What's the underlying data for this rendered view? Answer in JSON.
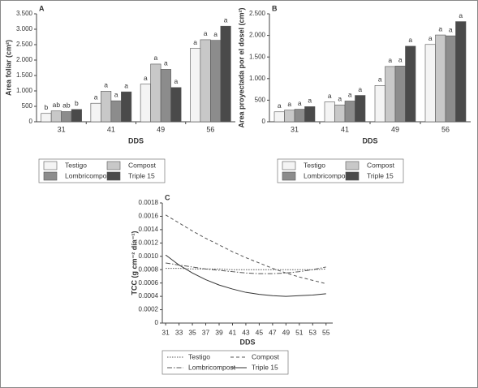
{
  "chart_data": [
    {
      "type": "bar",
      "panel": "A",
      "ylabel": "Area foliar (cm²)",
      "xlabel": "DDS",
      "categories": [
        "31",
        "41",
        "49",
        "56"
      ],
      "ylim": [
        0,
        3500
      ],
      "yticks": [
        0,
        500,
        {
          "value": 1000,
          "label": "1.000"
        },
        {
          "value": 1500,
          "label": "1.500"
        },
        {
          "value": 2000,
          "label": "2.000"
        },
        {
          "value": 2500,
          "label": "2.500"
        },
        {
          "value": 3000,
          "label": "3.000"
        },
        {
          "value": 3500,
          "label": "3.500"
        }
      ],
      "series": [
        {
          "name": "Testigo",
          "color": "#f4f4f4",
          "values": [
            270,
            600,
            1220,
            2380
          ],
          "letters": [
            "b",
            "a",
            "a",
            "a"
          ]
        },
        {
          "name": "Compost",
          "color": "#c8c8c8",
          "values": [
            350,
            990,
            1870,
            2660
          ],
          "letters": [
            "ab",
            "a",
            "a",
            "a"
          ]
        },
        {
          "name": "Lombricompost",
          "color": "#8c8c8c",
          "values": [
            330,
            680,
            1700,
            2640
          ],
          "letters": [
            "ab",
            "a",
            "a",
            "a"
          ]
        },
        {
          "name": "Triple 15",
          "color": "#4a4a4a",
          "values": [
            400,
            970,
            1110,
            3100
          ],
          "letters": [
            "b",
            "a",
            "a",
            "a"
          ]
        }
      ]
    },
    {
      "type": "bar",
      "panel": "B",
      "ylabel": "Area proyectada por el dosel (cm²)",
      "xlabel": "DDS",
      "categories": [
        "31",
        "41",
        "49",
        "56"
      ],
      "ylim": [
        0,
        2500
      ],
      "yticks": [
        0,
        500,
        {
          "value": 1000,
          "label": "1.000"
        },
        {
          "value": 1500,
          "label": "1.500"
        },
        {
          "value": 2000,
          "label": "2.000"
        },
        {
          "value": 2500,
          "label": "2.500"
        }
      ],
      "series": [
        {
          "name": "Testigo",
          "color": "#f4f4f4",
          "values": [
            230,
            460,
            840,
            1790
          ],
          "letters": [
            "a",
            "a",
            "a",
            "a"
          ]
        },
        {
          "name": "Compost",
          "color": "#c8c8c8",
          "values": [
            270,
            390,
            1280,
            2010
          ],
          "letters": [
            "a",
            "a",
            "a",
            "a"
          ]
        },
        {
          "name": "Lombricompost",
          "color": "#8c8c8c",
          "values": [
            290,
            480,
            1290,
            1990
          ],
          "letters": [
            "a",
            "a",
            "a",
            "a"
          ]
        },
        {
          "name": "Triple 15",
          "color": "#4a4a4a",
          "values": [
            350,
            610,
            1750,
            2320
          ],
          "letters": [
            "a",
            "a",
            "a",
            "a"
          ]
        }
      ]
    },
    {
      "type": "line",
      "panel": "C",
      "ylabel": "TCC (g cm⁻² día⁻¹)",
      "xlabel": "DDS",
      "x": [
        31,
        33,
        35,
        37,
        39,
        41,
        43,
        45,
        47,
        49,
        51,
        53,
        55
      ],
      "xlim": [
        30.5,
        56
      ],
      "xticks": [
        31,
        33,
        35,
        37,
        39,
        41,
        43,
        45,
        47,
        49,
        51,
        53,
        55
      ],
      "ylim": [
        0,
        0.0018
      ],
      "yticks": [
        0,
        0.0002,
        0.0004,
        0.0006,
        0.0008,
        {
          "value": 0.001,
          "label": "0.0010"
        },
        0.0012,
        0.0014,
        0.0016,
        0.0018
      ],
      "series": [
        {
          "name": "Testigo",
          "color": "#555555",
          "line_style": "dotted",
          "values": [
            0.00082,
            0.00082,
            0.00081,
            0.00081,
            0.00081,
            0.0008,
            0.0008,
            0.0008,
            0.0008,
            0.0008,
            0.0008,
            0.0008,
            0.00081
          ]
        },
        {
          "name": "Compost",
          "color": "#555555",
          "line_style": "dashed",
          "values": [
            0.00162,
            0.0015,
            0.00138,
            0.00127,
            0.00117,
            0.00107,
            0.00098,
            0.0009,
            0.00082,
            0.00075,
            0.00069,
            0.00064,
            0.00059
          ]
        },
        {
          "name": "Lombricompost",
          "color": "#555555",
          "line_style": "dashdot",
          "values": [
            0.0009,
            0.00087,
            0.00084,
            0.00081,
            0.00079,
            0.00077,
            0.00075,
            0.00074,
            0.00074,
            0.00075,
            0.00077,
            0.0008,
            0.00084
          ]
        },
        {
          "name": "Triple 15",
          "color": "#333333",
          "line_style": "solid",
          "values": [
            0.00102,
            0.00087,
            0.00075,
            0.00065,
            0.00057,
            0.00051,
            0.00046,
            0.00043,
            0.00041,
            0.0004,
            0.00041,
            0.00042,
            0.00044
          ]
        }
      ]
    }
  ]
}
